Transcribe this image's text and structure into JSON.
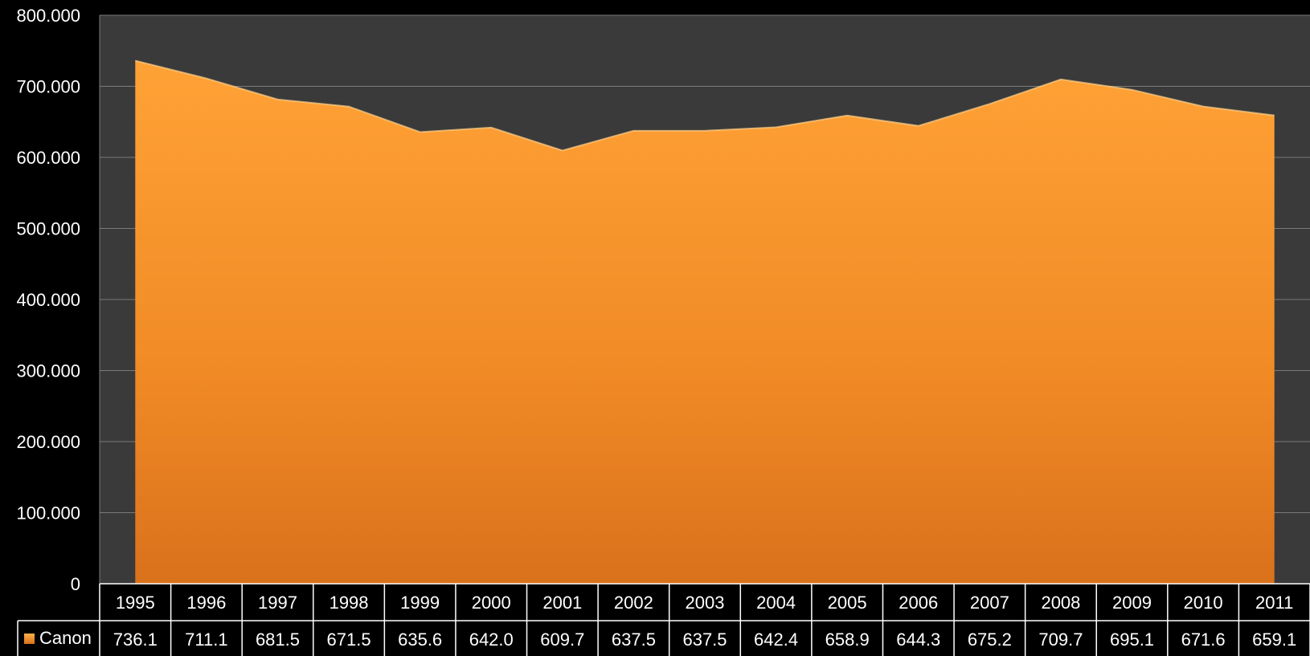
{
  "chart_data": {
    "type": "area",
    "title": "",
    "xlabel": "",
    "ylabel": "",
    "categories": [
      "1995",
      "1996",
      "1997",
      "1998",
      "1999",
      "2000",
      "2001",
      "2002",
      "2003",
      "2004",
      "2005",
      "2006",
      "2007",
      "2008",
      "2009",
      "2010",
      "2011"
    ],
    "series": [
      {
        "name": "Canon",
        "values": [
          736.1,
          711.1,
          681.5,
          671.5,
          635.6,
          642.0,
          609.7,
          637.5,
          637.5,
          642.4,
          658.9,
          644.3,
          675.2,
          709.7,
          695.1,
          671.6,
          659.1
        ],
        "labels": [
          "736.1",
          "711.1",
          "681.5",
          "671.5",
          "635.6",
          "642.0",
          "609.7",
          "637.5",
          "637.5",
          "642.4",
          "658.9",
          "644.3",
          "675.2",
          "709.7",
          "695.1",
          "671.6",
          "659.1"
        ],
        "color": "#f7962a"
      }
    ],
    "ylim": [
      0,
      800
    ],
    "yticks": [
      0,
      100,
      200,
      300,
      400,
      500,
      600,
      700,
      800
    ],
    "ytick_labels": [
      "0",
      "100.000",
      "200.000",
      "300.000",
      "400.000",
      "500.000",
      "600.000",
      "700.000",
      "800.000"
    ],
    "grid": true,
    "data_table": true,
    "colors": {
      "plot_background": "#3a3a3a",
      "page_background": "#000000",
      "gridline": "#7a7a7a",
      "text": "#ffffff"
    }
  }
}
